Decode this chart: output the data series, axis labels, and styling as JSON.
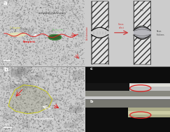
{
  "bg_color": "#cccccc",
  "sem_top_bg": "#8a8a8a",
  "sem_bot_bg": "#707070",
  "schematic_bg": "#f5f5f5",
  "photo_bg": "#aaaaaa",
  "stripping_text": "stripping direction",
  "stress_text": "Stress\neffect",
  "resin_text1": "Thin",
  "resin_text2": "Resin\nthickens",
  "antilubrication_text": "Antilubrication",
  "label_a": "a",
  "label_b": "b",
  "label_c": "c",
  "label_d": "b",
  "sem_text1": "C region",
  "sem_text2": "Empiric",
  "sem_text3": "A region",
  "sem_bot_text1": "sulfonated graphene",
  "sem_bot_text2": "resin surface",
  "hatch_pattern": "////",
  "hatch_color": "#555555",
  "roller_face": "#e0e0e0",
  "arrow_red": "#dd2222",
  "arrow_white": "#ffffff",
  "circle_red": "#dd2222",
  "photo_strip_dark": "#0a0a0a",
  "photo_gray": "#c8c8b0",
  "photo_shine": "#e8e8d8",
  "photo_bg_gray": "#999999",
  "divider": "#888888"
}
